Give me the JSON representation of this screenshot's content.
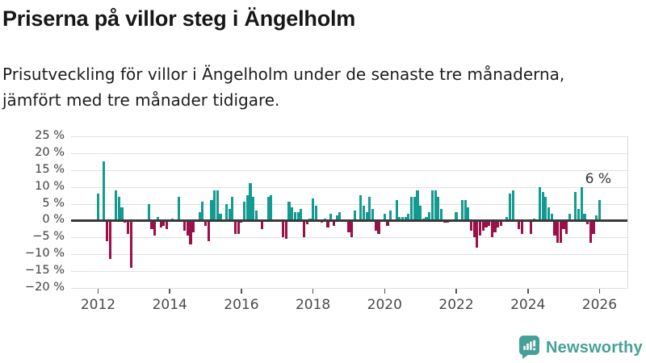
{
  "header": {
    "title": "Priserna på villor steg i Ängelholm",
    "subtitle_lines": [
      "Prisutveckling för villor i Ängelholm under de senaste tre månaderna,",
      "jämfört med tre månader tidigare."
    ]
  },
  "chart_data": {
    "type": "bar",
    "title": "Priserna på villor steg i Ängelholm",
    "ylabel": "",
    "xlabel": "",
    "unit": "%",
    "ylim": [
      -20,
      25
    ],
    "grid": "horizontal",
    "x_start": {
      "year": 2012,
      "month": 1
    },
    "x_months_total": 169,
    "x_tick_years": [
      2012,
      2014,
      2016,
      2018,
      2020,
      2022,
      2024,
      2026
    ],
    "y_ticks": [
      {
        "value": 25,
        "label": "25 %"
      },
      {
        "value": 20,
        "label": "20 %"
      },
      {
        "value": 15,
        "label": "15 %"
      },
      {
        "value": 10,
        "label": "10 %"
      },
      {
        "value": 5,
        "label": "5 %"
      },
      {
        "value": 0,
        "label": "0 %"
      },
      {
        "value": -5,
        "label": "−5 %"
      },
      {
        "value": -10,
        "label": "−10 %"
      },
      {
        "value": -15,
        "label": "−15 %"
      },
      {
        "value": -20,
        "label": "−20 %"
      }
    ],
    "values": [
      8,
      null,
      17.5,
      -6,
      -11.5,
      null,
      9,
      7,
      4,
      -0.5,
      -4,
      -14,
      null,
      null,
      null,
      null,
      null,
      5,
      -2.5,
      -4.5,
      1,
      -2,
      -1.5,
      -2.5,
      null,
      0.5,
      null,
      7,
      null,
      -3,
      -4.5,
      -7,
      -3.5,
      null,
      2.5,
      5.5,
      -1.5,
      -6,
      6,
      9,
      9,
      2,
      null,
      5,
      3.5,
      7,
      -4,
      -4,
      -0.5,
      5.5,
      7.5,
      11,
      7,
      3,
      null,
      -2.5,
      null,
      7,
      7.5,
      null,
      null,
      null,
      -5,
      -5.5,
      5.5,
      4,
      2.5,
      2.5,
      3.5,
      -5,
      -1,
      0.5,
      6.5,
      4.5,
      null,
      -0.5,
      0.5,
      -2,
      2,
      -1.5,
      1.5,
      2.5,
      null,
      null,
      -3.5,
      -5,
      3,
      null,
      7.5,
      4.5,
      2.5,
      7,
      3.5,
      -3,
      -4,
      null,
      2,
      -1.5,
      3,
      null,
      6,
      1,
      1,
      1,
      2,
      7,
      7,
      9,
      4.5,
      0.5,
      1,
      2.5,
      9,
      9,
      7,
      3.5,
      -0.5,
      -0.5,
      null,
      null,
      2.5,
      null,
      6,
      6,
      4,
      -3,
      -5,
      -8,
      -4.5,
      -3,
      -2,
      -1.5,
      -5,
      -3.5,
      -2,
      -1.5,
      null,
      1,
      8,
      9,
      null,
      -2.5,
      -4,
      null,
      null,
      -4,
      0.5,
      null,
      10,
      8.5,
      7,
      4,
      2,
      -4.5,
      -6.5,
      -6.5,
      -2.5,
      -4,
      2,
      null,
      8.5,
      3.5,
      10,
      2,
      -1,
      -6.5,
      -4,
      1.5,
      6
    ],
    "annotation": {
      "text": "6 %",
      "value": 6,
      "applies_to": "latest bar"
    },
    "colors": {
      "positive": "#149b91",
      "negative": "#9b1048"
    }
  },
  "footer": {
    "brand": "Newsworthy",
    "brand_color": "#46a097",
    "logo_icon": "speech-bubble-bar-chart-icon"
  }
}
